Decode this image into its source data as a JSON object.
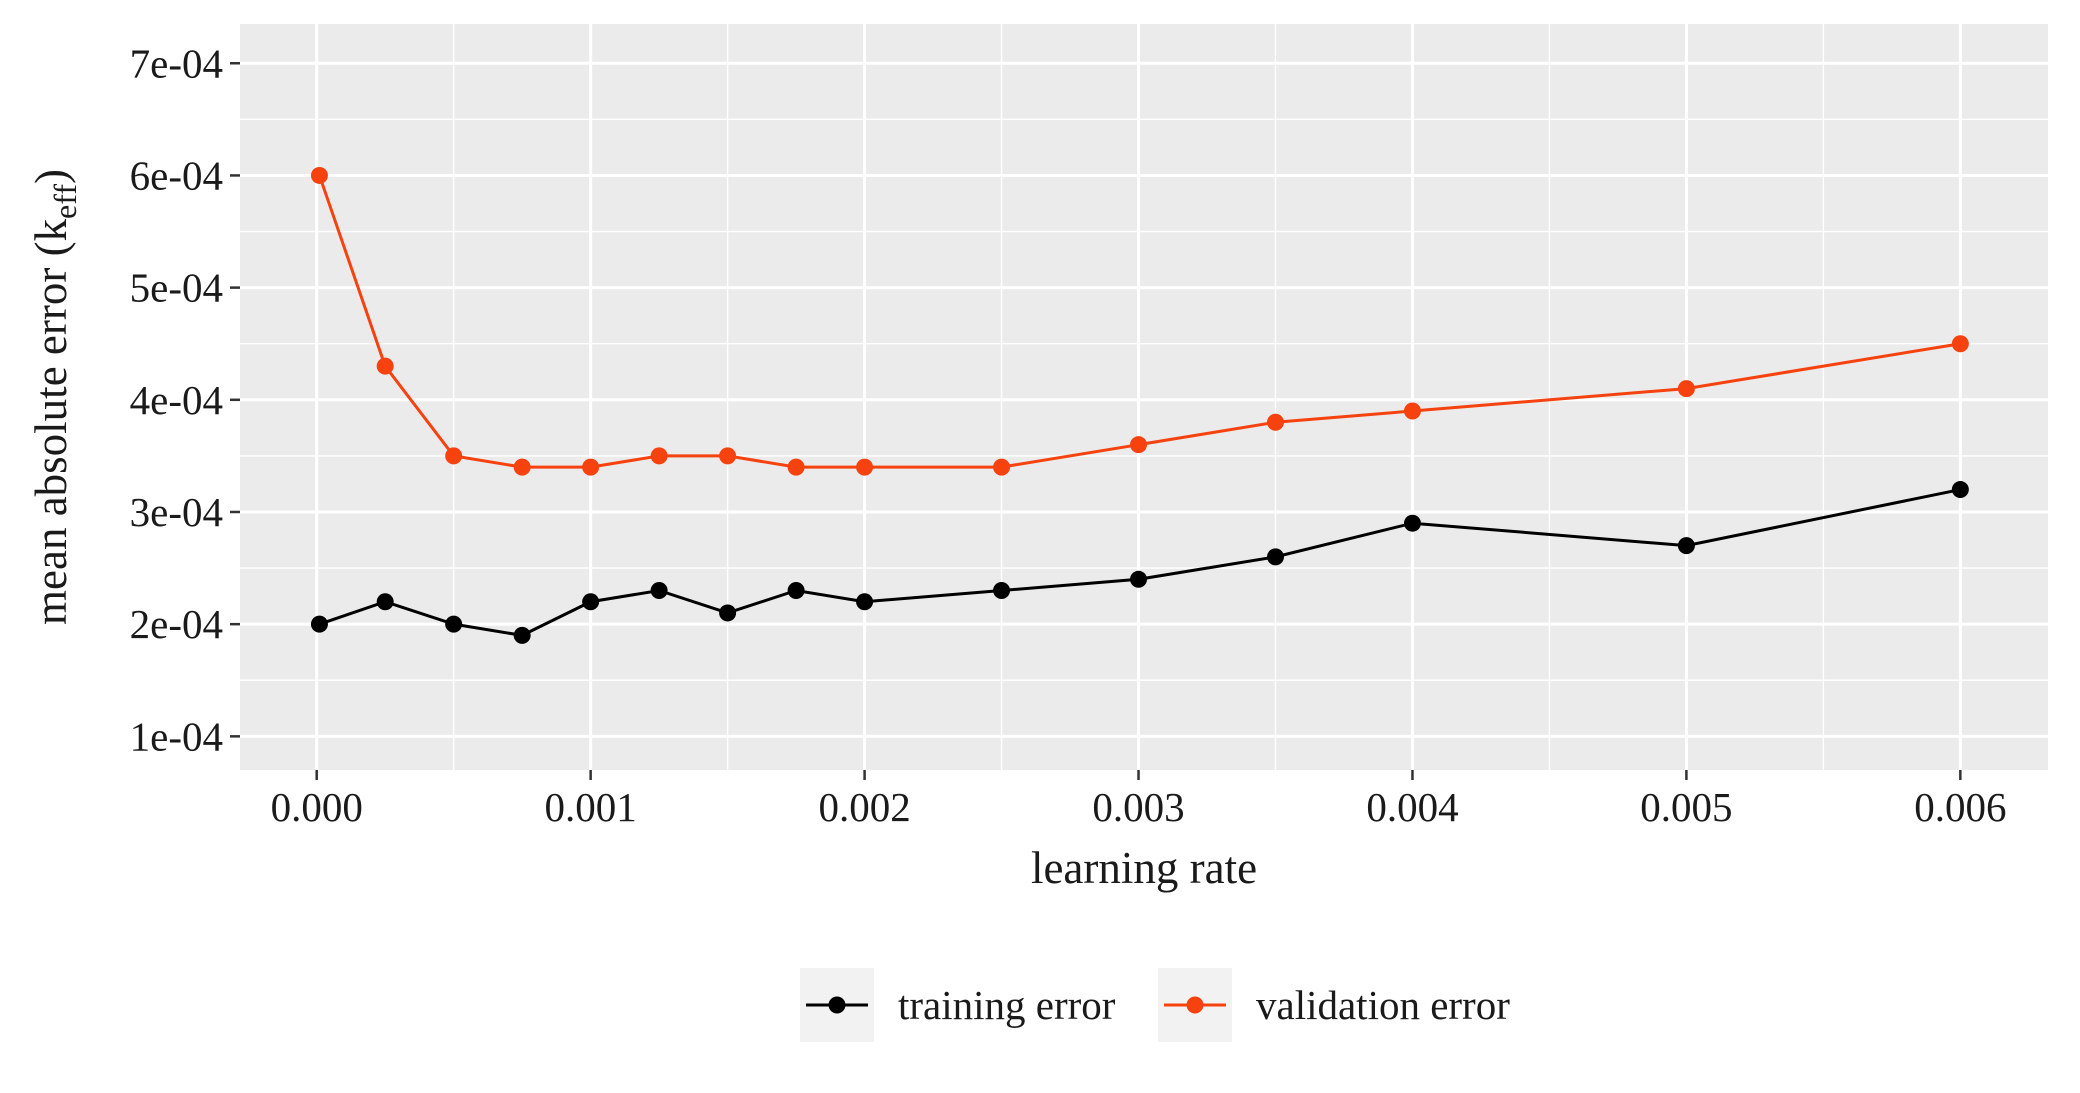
{
  "chart_data": {
    "type": "line",
    "title": "",
    "xlabel": "learning rate",
    "ylabel": "mean absolute error (k",
    "ylabel_subscript": "eff",
    "ylabel_close": ")",
    "xlim": [
      -0.00028,
      0.00632
    ],
    "ylim": [
      7e-05,
      0.000735
    ],
    "x_ticks": [
      0.0,
      0.001,
      0.002,
      0.003,
      0.004,
      0.005,
      0.006
    ],
    "x_tick_labels": [
      "0.000",
      "0.001",
      "0.002",
      "0.003",
      "0.004",
      "0.005",
      "0.006"
    ],
    "y_ticks": [
      0.0001,
      0.0002,
      0.0003,
      0.0004,
      0.0005,
      0.0006,
      0.0007
    ],
    "y_tick_labels": [
      "1e-04",
      "2e-04",
      "3e-04",
      "4e-04",
      "5e-04",
      "6e-04",
      "7e-04"
    ],
    "grid": true,
    "legend_position": "bottom",
    "background": "#ebebeb",
    "series": [
      {
        "name": "training error",
        "color": "#000000",
        "x": [
          1e-05,
          0.00025,
          0.0005,
          0.00075,
          0.001,
          0.00125,
          0.0015,
          0.00175,
          0.002,
          0.0025,
          0.003,
          0.0035,
          0.004,
          0.005,
          0.006
        ],
        "y": [
          0.0002,
          0.00022,
          0.0002,
          0.00019,
          0.00022,
          0.00023,
          0.00021,
          0.00023,
          0.00022,
          0.00023,
          0.00024,
          0.00026,
          0.00029,
          0.00027,
          0.00032
        ]
      },
      {
        "name": "validation error",
        "color": "#f5420f",
        "x": [
          1e-05,
          0.00025,
          0.0005,
          0.00075,
          0.001,
          0.00125,
          0.0015,
          0.00175,
          0.002,
          0.0025,
          0.003,
          0.0035,
          0.004,
          0.005,
          0.006
        ],
        "y": [
          0.0006,
          0.00043,
          0.00035,
          0.00034,
          0.00034,
          0.00035,
          0.00035,
          0.00034,
          0.00034,
          0.00034,
          0.00036,
          0.00038,
          0.00039,
          0.00041,
          0.00045
        ]
      }
    ]
  }
}
